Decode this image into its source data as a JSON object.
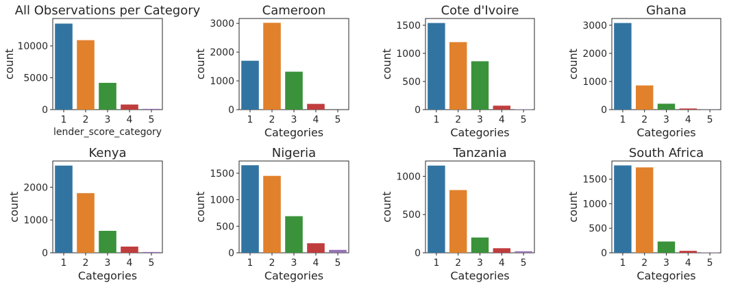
{
  "chart_data": [
    {
      "type": "bar",
      "title": "All Observations per Category",
      "xlabel": "lender_score_category",
      "ylabel": "count",
      "categories": [
        "1",
        "2",
        "3",
        "4",
        "5"
      ],
      "values": [
        13500,
        10900,
        4200,
        800,
        120
      ],
      "ylim": [
        0,
        14300
      ],
      "yticks": [
        0,
        5000,
        10000
      ]
    },
    {
      "type": "bar",
      "title": "Cameroon",
      "xlabel": "Categories",
      "ylabel": "count",
      "categories": [
        "1",
        "2",
        "3",
        "4",
        "5"
      ],
      "values": [
        1700,
        3020,
        1320,
        200,
        0
      ],
      "ylim": [
        0,
        3170
      ],
      "yticks": [
        0,
        1000,
        2000,
        3000
      ]
    },
    {
      "type": "bar",
      "title": "Cote d'Ivoire",
      "xlabel": "Categories",
      "ylabel": "count",
      "categories": [
        "1",
        "2",
        "3",
        "4",
        "5"
      ],
      "values": [
        1540,
        1200,
        860,
        70,
        5
      ],
      "ylim": [
        0,
        1620
      ],
      "yticks": [
        0,
        500,
        1000,
        1500
      ]
    },
    {
      "type": "bar",
      "title": "Ghana",
      "xlabel": "Categories",
      "ylabel": "count",
      "categories": [
        "1",
        "2",
        "3",
        "4",
        "5"
      ],
      "values": [
        3080,
        860,
        210,
        40,
        5
      ],
      "ylim": [
        0,
        3240
      ],
      "yticks": [
        0,
        1000,
        2000,
        3000
      ]
    },
    {
      "type": "bar",
      "title": "Kenya",
      "xlabel": "Categories",
      "ylabel": "count",
      "categories": [
        "1",
        "2",
        "3",
        "4",
        "5"
      ],
      "values": [
        2660,
        1820,
        670,
        190,
        25
      ],
      "ylim": [
        0,
        2800
      ],
      "yticks": [
        0,
        1000,
        2000
      ]
    },
    {
      "type": "bar",
      "title": "Nigeria",
      "xlabel": "Categories",
      "ylabel": "count",
      "categories": [
        "1",
        "2",
        "3",
        "4",
        "5"
      ],
      "values": [
        1650,
        1450,
        690,
        180,
        55
      ],
      "ylim": [
        0,
        1730
      ],
      "yticks": [
        0,
        500,
        1000,
        1500
      ]
    },
    {
      "type": "bar",
      "title": "Tanzania",
      "xlabel": "Categories",
      "ylabel": "count",
      "categories": [
        "1",
        "2",
        "3",
        "4",
        "5"
      ],
      "values": [
        1140,
        820,
        200,
        60,
        20
      ],
      "ylim": [
        0,
        1200
      ],
      "yticks": [
        0,
        500,
        1000
      ]
    },
    {
      "type": "bar",
      "title": "South Africa",
      "xlabel": "Categories",
      "ylabel": "count",
      "categories": [
        "1",
        "2",
        "3",
        "4",
        "5"
      ],
      "values": [
        1780,
        1740,
        230,
        40,
        5
      ],
      "ylim": [
        0,
        1870
      ],
      "yticks": [
        0,
        500,
        1000,
        1500
      ]
    }
  ],
  "colors": [
    "#3274a1",
    "#e1812c",
    "#3a923a",
    "#c03d3e",
    "#9372b2"
  ]
}
